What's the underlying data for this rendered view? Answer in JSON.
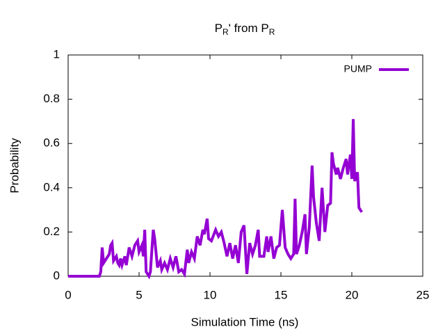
{
  "chart_data": {
    "type": "line",
    "title": [
      "P",
      "R",
      "' from P",
      "R"
    ],
    "title_subscripts": [
      false,
      true,
      false,
      true
    ],
    "xlabel": "Simulation Time (ns)",
    "ylabel": "Probability",
    "xlim": [
      0,
      25
    ],
    "xticks": [
      0,
      5,
      10,
      15,
      20,
      25
    ],
    "ylim": [
      0,
      1
    ],
    "yticks": [
      0,
      0.2,
      0.4,
      0.6,
      0.8,
      1
    ],
    "legend": "top-right",
    "series": [
      {
        "name": "PUMP",
        "color": "#9400d3",
        "x": [
          0,
          0.5,
          1,
          1.5,
          2,
          2.2,
          2.3,
          2.4,
          2.5,
          2.7,
          2.9,
          3.0,
          3.1,
          3.2,
          3.4,
          3.5,
          3.6,
          3.7,
          3.8,
          4.0,
          4.1,
          4.3,
          4.5,
          4.7,
          4.9,
          5.0,
          5.2,
          5.3,
          5.4,
          5.5,
          5.6,
          5.7,
          5.8,
          6.0,
          6.1,
          6.3,
          6.5,
          6.6,
          6.8,
          7.0,
          7.2,
          7.4,
          7.6,
          7.8,
          8.0,
          8.2,
          8.4,
          8.5,
          8.7,
          8.9,
          9.1,
          9.3,
          9.5,
          9.6,
          9.8,
          9.9,
          10.1,
          10.4,
          10.6,
          10.8,
          11.0,
          11.2,
          11.4,
          11.6,
          11.8,
          12.0,
          12.2,
          12.4,
          12.6,
          12.8,
          13.0,
          13.2,
          13.4,
          13.5,
          13.8,
          14.0,
          14.1,
          14.3,
          14.5,
          14.7,
          14.9,
          15.1,
          15.3,
          15.5,
          15.7,
          15.9,
          16.0,
          16.1,
          16.3,
          16.5,
          16.7,
          16.8,
          17.0,
          17.2,
          17.3,
          17.5,
          17.7,
          17.9,
          18.0,
          18.1,
          18.3,
          18.5,
          18.6,
          18.7,
          18.9,
          19.0,
          19.2,
          19.4,
          19.6,
          19.7,
          19.9,
          20.0,
          20.1,
          20.2,
          20.4,
          20.5,
          20.7
        ],
        "values": [
          0,
          0,
          0,
          0,
          0,
          0,
          0.02,
          0.13,
          0.06,
          0.08,
          0.1,
          0.14,
          0.15,
          0.07,
          0.09,
          0.06,
          0.05,
          0.08,
          0.05,
          0.09,
          0.05,
          0.13,
          0.09,
          0.14,
          0.16,
          0.11,
          0.14,
          0.09,
          0.21,
          0.02,
          0.01,
          0,
          0.02,
          0.21,
          0.17,
          0.04,
          0.07,
          0.03,
          0.06,
          0.03,
          0.08,
          0.04,
          0.09,
          0.02,
          0.03,
          0.01,
          0.12,
          0.06,
          0.11,
          0.08,
          0.18,
          0.14,
          0.21,
          0.19,
          0.26,
          0.17,
          0.16,
          0.21,
          0.18,
          0.2,
          0.15,
          0.09,
          0.15,
          0.08,
          0.14,
          0.06,
          0.2,
          0.23,
          0.01,
          0.15,
          0.1,
          0.14,
          0.21,
          0.09,
          0.09,
          0.18,
          0.11,
          0.18,
          0.08,
          0.13,
          0.14,
          0.3,
          0.13,
          0.1,
          0.08,
          0.1,
          0.35,
          0.1,
          0.14,
          0.2,
          0.28,
          0.1,
          0.22,
          0.5,
          0.36,
          0.24,
          0.16,
          0.4,
          0.3,
          0.2,
          0.32,
          0.33,
          0.56,
          0.51,
          0.46,
          0.49,
          0.44,
          0.49,
          0.53,
          0.46,
          0.55,
          0.44,
          0.71,
          0.43,
          0.47,
          0.31,
          0.29
        ]
      }
    ]
  }
}
